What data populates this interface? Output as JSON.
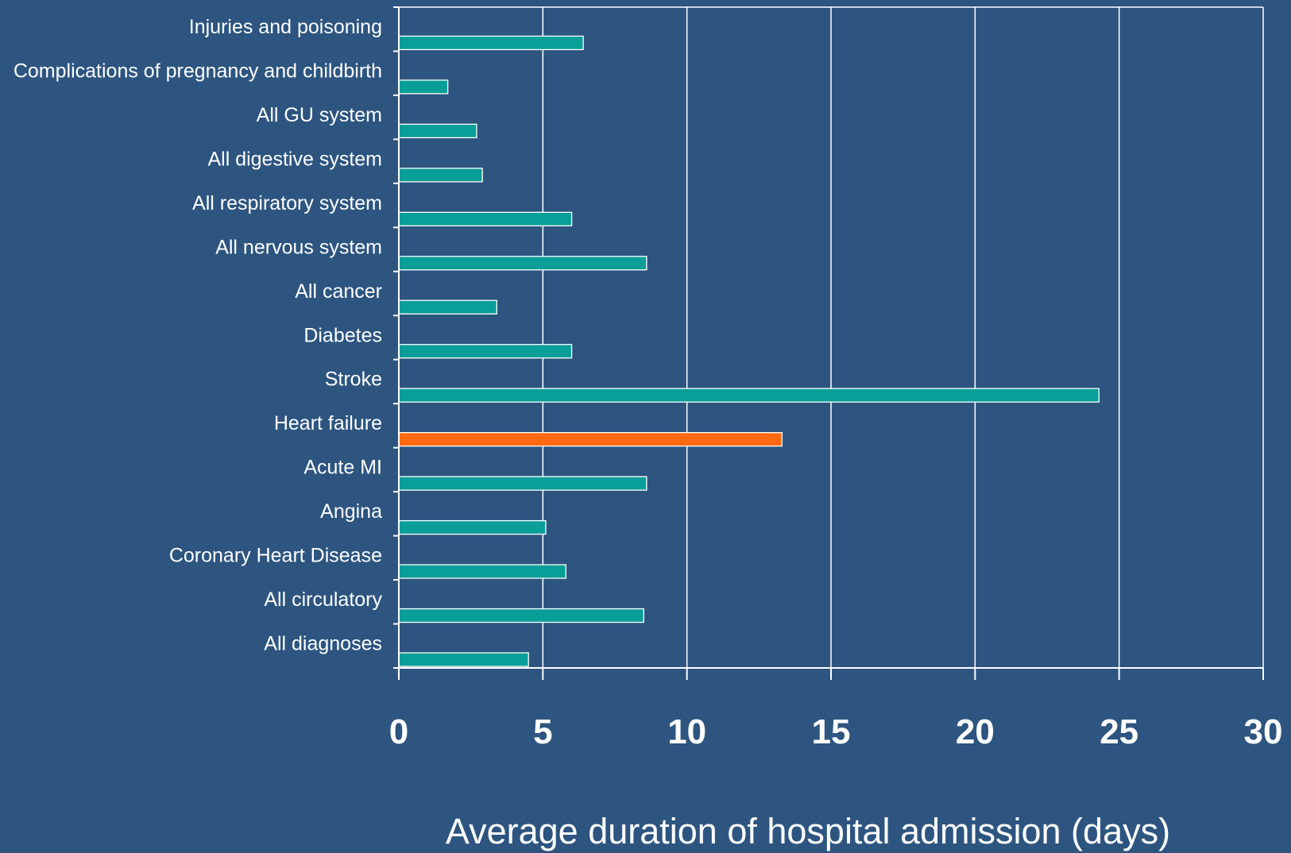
{
  "chart_data": {
    "type": "bar",
    "orientation": "horizontal",
    "title": "",
    "xlabel": "Average duration of hospital admission (days)",
    "ylabel": "",
    "xlim": [
      0,
      30
    ],
    "xticks": [
      0,
      5,
      10,
      15,
      20,
      25,
      30
    ],
    "grid": true,
    "categories": [
      "Injuries and poisoning",
      "Complications of pregnancy and childbirth",
      "All GU system",
      "All digestive system",
      "All respiratory system",
      "All nervous system",
      "All cancer",
      "Diabetes",
      "Stroke",
      "Heart failure",
      "Acute MI",
      "Angina",
      "Coronary Heart Disease",
      "All circulatory",
      "All diagnoses"
    ],
    "values": [
      6.4,
      1.7,
      2.7,
      2.9,
      6.0,
      8.6,
      3.4,
      6.0,
      24.3,
      13.3,
      8.6,
      5.1,
      5.8,
      8.5,
      4.5
    ],
    "bar_colors": [
      "#0a9e98",
      "#0a9e98",
      "#0a9e98",
      "#0a9e98",
      "#0a9e98",
      "#0a9e98",
      "#0a9e98",
      "#0a9e98",
      "#0a9e98",
      "#ff6a10",
      "#0a9e98",
      "#0a9e98",
      "#0a9e98",
      "#0a9e98",
      "#0a9e98"
    ]
  },
  "colors": {
    "background": "#2d5580",
    "bar_default": "#0a9e98",
    "bar_highlight": "#ff6a10",
    "text": "#ffffff",
    "grid": "#ffffff"
  }
}
